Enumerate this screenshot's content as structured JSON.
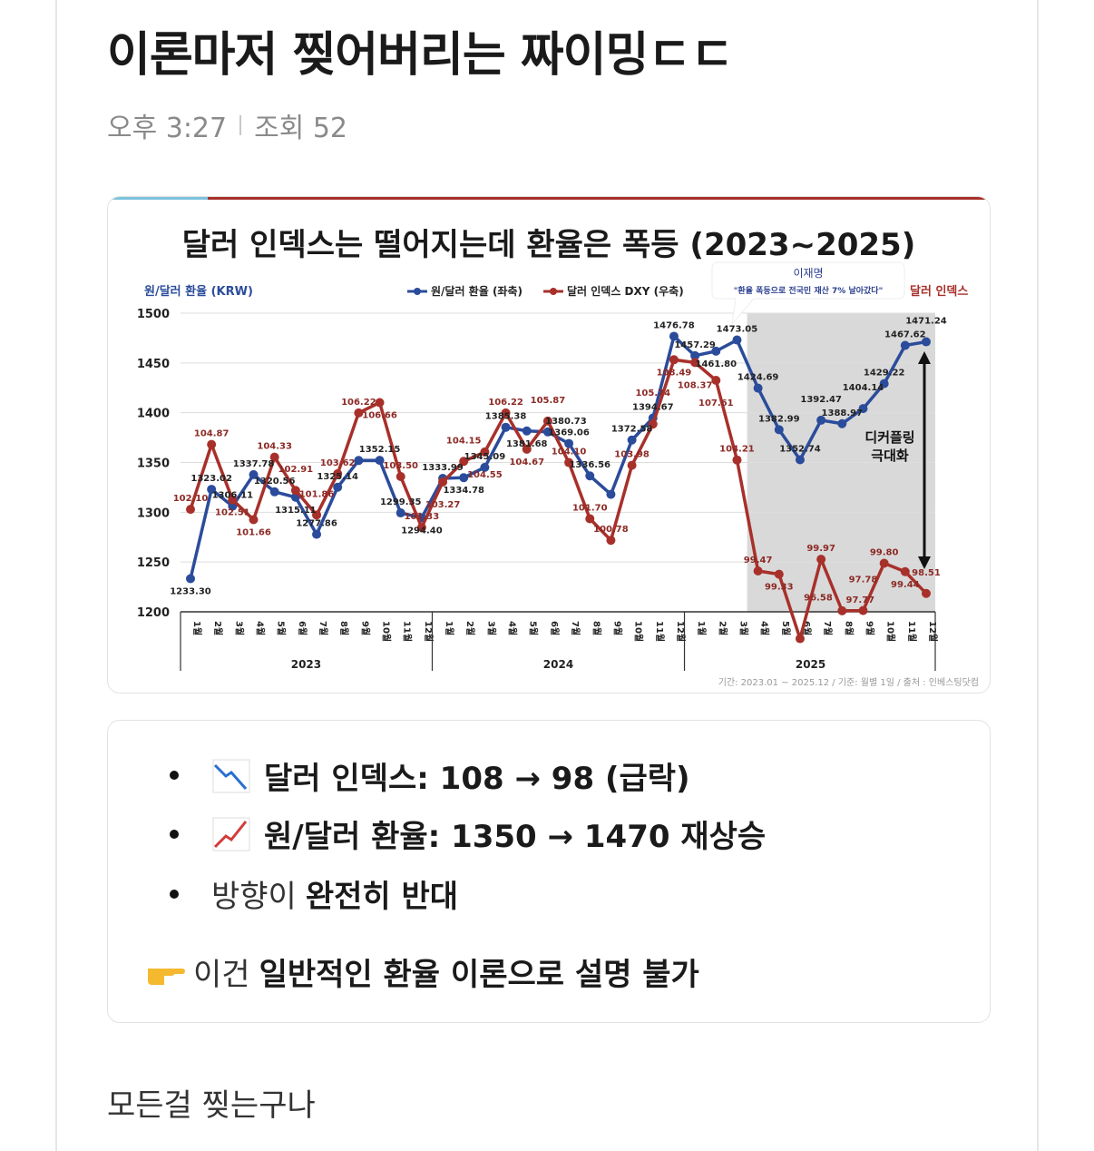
{
  "post": {
    "title": "이론마저 찢어버리는 짜이밍ㄷㄷ",
    "time": "오후 3:27",
    "views_label": "조회 52"
  },
  "chart_data": {
    "type": "line",
    "title": "달러 인덱스는 떨어지는데 환율은 폭등 (2023~2025)",
    "ylabel": "원/달러 환율 (KRW)",
    "ylim": [
      1200,
      1500
    ],
    "yticks": [
      "1500",
      "1450",
      "1400",
      "1350",
      "1300",
      "1250",
      "1200"
    ],
    "grid": true,
    "legend_position": "top-right",
    "legend": [
      "원/달러 환율 (좌축)",
      "달러 인덱스 DXY (우축)"
    ],
    "years": [
      "2023",
      "2024",
      "2025"
    ],
    "month_labels": [
      "1월",
      "2월",
      "3월",
      "4월",
      "5월",
      "6월",
      "7월",
      "8월",
      "9월",
      "10월",
      "11월",
      "12월"
    ],
    "categories": [
      "2023-01",
      "2023-02",
      "2023-03",
      "2023-04",
      "2023-05",
      "2023-06",
      "2023-07",
      "2023-08",
      "2023-09",
      "2023-10",
      "2023-11",
      "2023-12",
      "2024-01",
      "2024-02",
      "2024-03",
      "2024-04",
      "2024-05",
      "2024-06",
      "2024-07",
      "2024-08",
      "2024-09",
      "2024-10",
      "2024-11",
      "2024-12",
      "2025-01",
      "2025-02",
      "2025-03",
      "2025-04",
      "2025-05",
      "2025-06",
      "2025-07",
      "2025-08",
      "2025-09",
      "2025-10",
      "2025-11",
      "2025-12"
    ],
    "series": [
      {
        "name": "원/달러 환율 (좌축)",
        "color": "#2b4c9b",
        "axis": "left",
        "values": [
          1233.3,
          1323.02,
          1306.11,
          1337.78,
          1320.56,
          1315.11,
          1277.86,
          1325.14,
          1352.0,
          1352.15,
          1299.35,
          1294.4,
          1333.99,
          1334.78,
          1345.09,
          1385.38,
          1381.68,
          1380.73,
          1369.06,
          1336.56,
          1318.0,
          1372.58,
          1394.67,
          1476.78,
          1457.29,
          1461.8,
          1473.05,
          1424.69,
          1382.99,
          1352.74,
          1392.47,
          1388.97,
          1404.14,
          1429.22,
          1467.62,
          1471.24
        ],
        "labels": [
          "1233.30",
          "1323.02",
          "1306.11",
          "1337.78",
          "1320.56",
          "1315.11",
          "1277.86",
          "1325.14",
          "",
          "1352.15",
          "1299.35",
          "1294.40",
          "1333.99",
          "1334.78",
          "1345.09",
          "1385.38",
          "1381.68",
          "1380.73",
          "1369.06",
          "1336.56",
          "",
          "1372.58",
          "1394.67",
          "1476.78",
          "1457.29",
          "1461.80",
          "1473.05",
          "1424.69",
          "1382.99",
          "1352.74",
          "1392.47",
          "1388.97",
          "1404.14",
          "1429.22",
          "1467.62",
          "1471.24"
        ]
      },
      {
        "name": "달러 인덱스 DXY (우축)",
        "color": "#a8302a",
        "axis": "right",
        "values": [
          102.1,
          104.87,
          102.51,
          101.66,
          104.33,
          102.91,
          101.86,
          103.62,
          106.22,
          106.66,
          103.5,
          101.33,
          103.27,
          104.15,
          104.55,
          106.22,
          104.67,
          105.87,
          104.1,
          101.7,
          100.78,
          103.98,
          105.74,
          108.49,
          108.37,
          107.61,
          104.21,
          99.47,
          99.33,
          96.58,
          99.97,
          97.77,
          97.78,
          99.8,
          99.44,
          98.51
        ],
        "labels": [
          "102.10",
          "104.87",
          "102.51",
          "101.66",
          "104.33",
          "102.91",
          "101.86",
          "103.62",
          "106.22",
          "106.66",
          "103.50",
          "101.33",
          "103.27",
          "104.15",
          "104.55",
          "106.22",
          "104.67",
          "105.87",
          "104.10",
          "101.70",
          "100.78",
          "103.98",
          "105.74",
          "108.49",
          "108.37",
          "107.61",
          "104.21",
          "99.47",
          "99.33",
          "96.58",
          "99.97",
          "97.77",
          "97.78",
          "99.80",
          "99.44",
          "98.51"
        ]
      }
    ],
    "shaded_range": [
      "2025-04",
      "2025-12"
    ],
    "annotation_name": "이재명",
    "annotation_quote": "\"환율 폭등으로 전국민 재산 7% 날아갔다\"",
    "annotation_side_label": "달러 인덱스",
    "decoupling_label_1": "디커플링",
    "decoupling_label_2": "극대화",
    "source": "기간: 2023.01 ~ 2025.12 / 기준: 월별 1일 / 출처 : 인베스팅닷컴"
  },
  "summary": {
    "items": [
      {
        "icon": "chart-decreasing-icon",
        "label": "달러 인덱스: 108 → 98 (급락)"
      },
      {
        "icon": "chart-increasing-icon",
        "label": "원/달러 환율: 1350 → 1470 재상승"
      },
      {
        "prefix": "방향이 ",
        "label": "완전히 반대"
      }
    ],
    "conclusion_icon": "pointing-right-icon",
    "conclusion_prefix": "이건 ",
    "conclusion_label": "일반적인 환율 이론으로 설명 불가"
  },
  "comment": "모든걸 찢는구나"
}
